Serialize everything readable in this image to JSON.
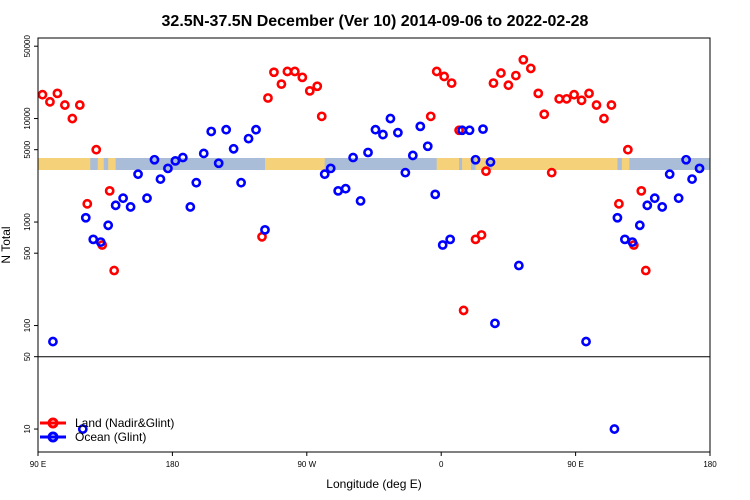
{
  "chart_data": {
    "type": "scatter",
    "title": "32.5N-37.5N December (Ver 10)   2014-09-06 to 2022-02-28",
    "xlabel": "Longitude (deg E)",
    "ylabel": "N Total",
    "x_ticks": [
      {
        "value": 90,
        "label": "90 E"
      },
      {
        "value": 180,
        "label": "180"
      },
      {
        "value": 270,
        "label": "90 W"
      },
      {
        "value": 360,
        "label": "0"
      },
      {
        "value": 450,
        "label": "90 E"
      },
      {
        "value": 540,
        "label": "180"
      }
    ],
    "y_ticks": [
      {
        "value": 10,
        "label": "10"
      },
      {
        "value": 50,
        "label": "50"
      },
      {
        "value": 100,
        "label": "100"
      },
      {
        "value": 500,
        "label": "500"
      },
      {
        "value": 1000,
        "label": "1000"
      },
      {
        "value": 5000,
        "label": "5000"
      },
      {
        "value": 10000,
        "label": "10000"
      },
      {
        "value": 50000,
        "label": "50000"
      }
    ],
    "xlim": [
      90,
      540
    ],
    "ylim": [
      6,
      60000
    ],
    "y_scale": "log",
    "reference_line_y": 50,
    "legend": {
      "position": "bottom-left"
    },
    "colors": {
      "land": "#ff0000",
      "ocean": "#0000ff",
      "map_land": "#f5d27a",
      "map_ocean": "#a9bdd9"
    },
    "series": [
      {
        "name": "Land (Nadir&Glint)",
        "color": "#ff0000",
        "points": [
          {
            "x": 93,
            "y": 17000
          },
          {
            "x": 98,
            "y": 14500
          },
          {
            "x": 103,
            "y": 17500
          },
          {
            "x": 108,
            "y": 13500
          },
          {
            "x": 113,
            "y": 10000
          },
          {
            "x": 118,
            "y": 13500
          },
          {
            "x": 123,
            "y": 1500
          },
          {
            "x": 129,
            "y": 5000
          },
          {
            "x": 133,
            "y": 600
          },
          {
            "x": 138,
            "y": 2000
          },
          {
            "x": 141,
            "y": 340
          },
          {
            "x": 240,
            "y": 720
          },
          {
            "x": 244,
            "y": 15800
          },
          {
            "x": 248,
            "y": 28000
          },
          {
            "x": 253,
            "y": 21500
          },
          {
            "x": 257,
            "y": 28500
          },
          {
            "x": 262,
            "y": 28500
          },
          {
            "x": 267,
            "y": 25000
          },
          {
            "x": 272,
            "y": 18500
          },
          {
            "x": 277,
            "y": 20500
          },
          {
            "x": 280,
            "y": 10500
          },
          {
            "x": 353,
            "y": 10500
          },
          {
            "x": 357,
            "y": 28500
          },
          {
            "x": 362,
            "y": 25500
          },
          {
            "x": 367,
            "y": 22000
          },
          {
            "x": 372,
            "y": 7700
          },
          {
            "x": 375,
            "y": 140
          },
          {
            "x": 383,
            "y": 680
          },
          {
            "x": 387,
            "y": 750
          },
          {
            "x": 390,
            "y": 3100
          },
          {
            "x": 395,
            "y": 22000
          },
          {
            "x": 400,
            "y": 27500
          },
          {
            "x": 405,
            "y": 21000
          },
          {
            "x": 410,
            "y": 26000
          },
          {
            "x": 415,
            "y": 37000
          },
          {
            "x": 420,
            "y": 30500
          },
          {
            "x": 425,
            "y": 17500
          },
          {
            "x": 429,
            "y": 11000
          },
          {
            "x": 434,
            "y": 3000
          },
          {
            "x": 439,
            "y": 15500
          },
          {
            "x": 444,
            "y": 15500
          },
          {
            "x": 449,
            "y": 17000
          },
          {
            "x": 454,
            "y": 15000
          },
          {
            "x": 459,
            "y": 17500
          },
          {
            "x": 464,
            "y": 13500
          },
          {
            "x": 469,
            "y": 10000
          },
          {
            "x": 474,
            "y": 13500
          },
          {
            "x": 479,
            "y": 1500
          },
          {
            "x": 485,
            "y": 5000
          },
          {
            "x": 489,
            "y": 600
          },
          {
            "x": 494,
            "y": 2000
          },
          {
            "x": 497,
            "y": 340
          }
        ]
      },
      {
        "name": "Ocean (Glint)",
        "color": "#0000ff",
        "points": [
          {
            "x": 100,
            "y": 70
          },
          {
            "x": 120,
            "y": 10
          },
          {
            "x": 122,
            "y": 1100
          },
          {
            "x": 127,
            "y": 680
          },
          {
            "x": 132,
            "y": 640
          },
          {
            "x": 137,
            "y": 930
          },
          {
            "x": 142,
            "y": 1450
          },
          {
            "x": 147,
            "y": 1700
          },
          {
            "x": 152,
            "y": 1400
          },
          {
            "x": 157,
            "y": 2900
          },
          {
            "x": 163,
            "y": 1700
          },
          {
            "x": 168,
            "y": 4000
          },
          {
            "x": 172,
            "y": 2600
          },
          {
            "x": 177,
            "y": 3300
          },
          {
            "x": 182,
            "y": 3900
          },
          {
            "x": 187,
            "y": 4200
          },
          {
            "x": 192,
            "y": 1400
          },
          {
            "x": 196,
            "y": 2400
          },
          {
            "x": 201,
            "y": 4600
          },
          {
            "x": 206,
            "y": 7500
          },
          {
            "x": 211,
            "y": 3700
          },
          {
            "x": 216,
            "y": 7800
          },
          {
            "x": 221,
            "y": 5100
          },
          {
            "x": 226,
            "y": 2400
          },
          {
            "x": 231,
            "y": 6400
          },
          {
            "x": 236,
            "y": 7800
          },
          {
            "x": 242,
            "y": 840
          },
          {
            "x": 282,
            "y": 2900
          },
          {
            "x": 286,
            "y": 3300
          },
          {
            "x": 291,
            "y": 2000
          },
          {
            "x": 296,
            "y": 2100
          },
          {
            "x": 301,
            "y": 4200
          },
          {
            "x": 306,
            "y": 1600
          },
          {
            "x": 311,
            "y": 4700
          },
          {
            "x": 316,
            "y": 7800
          },
          {
            "x": 321,
            "y": 7000
          },
          {
            "x": 326,
            "y": 10000
          },
          {
            "x": 331,
            "y": 7300
          },
          {
            "x": 336,
            "y": 3000
          },
          {
            "x": 341,
            "y": 4400
          },
          {
            "x": 346,
            "y": 8400
          },
          {
            "x": 351,
            "y": 5400
          },
          {
            "x": 356,
            "y": 1850
          },
          {
            "x": 361,
            "y": 600
          },
          {
            "x": 366,
            "y": 680
          },
          {
            "x": 374,
            "y": 7700
          },
          {
            "x": 379,
            "y": 7700
          },
          {
            "x": 383,
            "y": 4000
          },
          {
            "x": 388,
            "y": 7900
          },
          {
            "x": 393,
            "y": 3800
          },
          {
            "x": 396,
            "y": 105
          },
          {
            "x": 412,
            "y": 380
          },
          {
            "x": 457,
            "y": 70
          },
          {
            "x": 476,
            "y": 10
          },
          {
            "x": 478,
            "y": 1100
          },
          {
            "x": 483,
            "y": 680
          },
          {
            "x": 488,
            "y": 640
          },
          {
            "x": 493,
            "y": 930
          },
          {
            "x": 498,
            "y": 1450
          },
          {
            "x": 503,
            "y": 1700
          },
          {
            "x": 508,
            "y": 1400
          },
          {
            "x": 513,
            "y": 2900
          },
          {
            "x": 519,
            "y": 1700
          },
          {
            "x": 524,
            "y": 4000
          },
          {
            "x": 528,
            "y": 2600
          },
          {
            "x": 533,
            "y": 3300
          }
        ]
      }
    ]
  }
}
